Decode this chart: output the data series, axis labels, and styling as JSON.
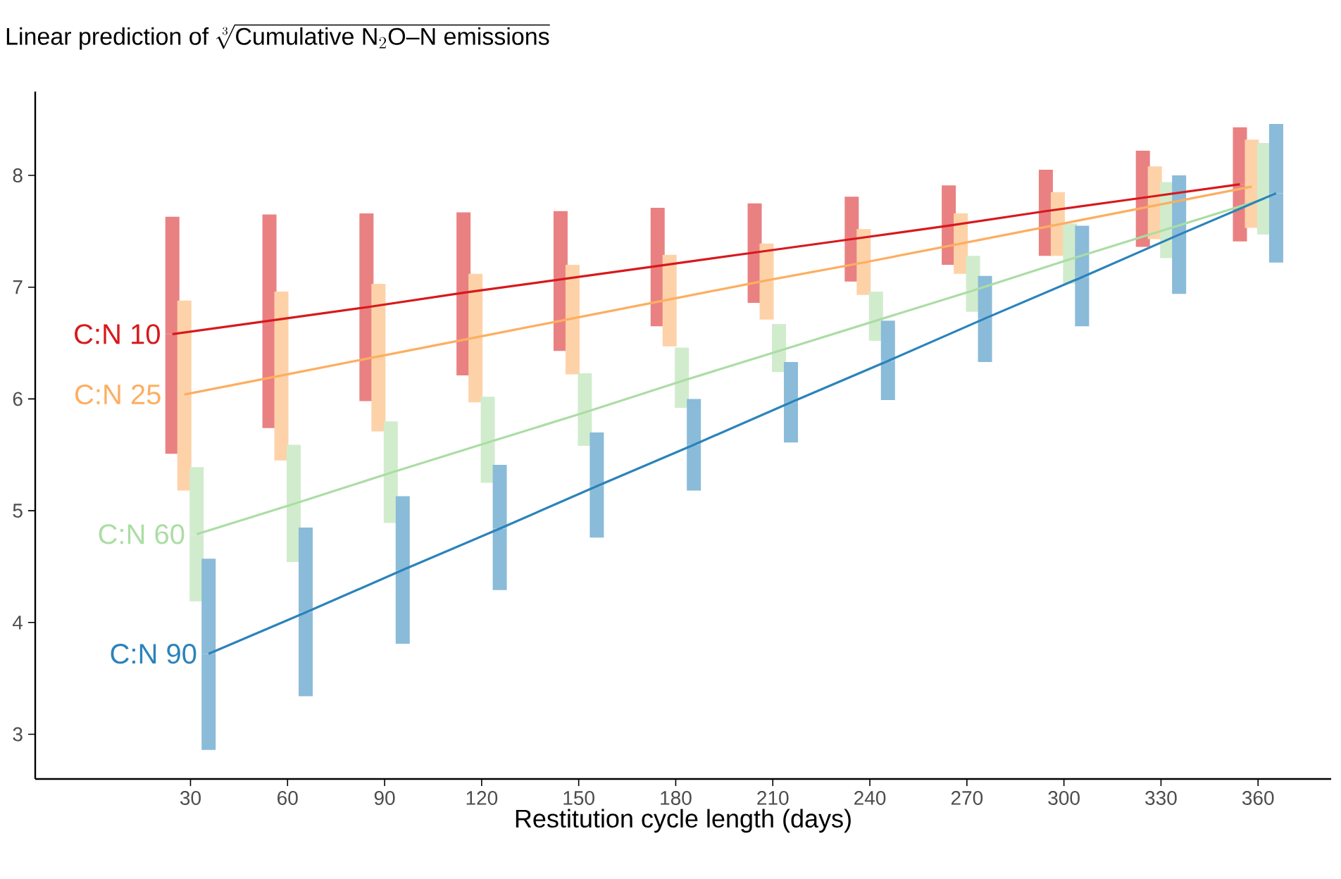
{
  "chart_data": {
    "type": "line",
    "title": "\\text{Linear prediction of }\\sqrt[3]{\\text{Cumulative N}_{2}\\text{O–N emissions}}",
    "xlabel": "Restitution cycle length (days)",
    "xlim": [
      -18,
      382.6
    ],
    "ylim": [
      2.6,
      8.75
    ],
    "xticks": [
      30,
      60,
      90,
      120,
      150,
      180,
      210,
      240,
      270,
      300,
      330,
      360
    ],
    "yticks": [
      3,
      4,
      5,
      6,
      7,
      8
    ],
    "marker": "none",
    "series": [
      {
        "name": "C:N 10",
        "color": "#d7191c",
        "x": [
          24.4,
          54.4,
          84.4,
          114.4,
          144.4,
          174.4,
          204.4,
          234.4,
          264.4,
          294.4,
          324.4,
          354.4
        ],
        "values": [
          6.58,
          6.7,
          6.82,
          6.95,
          7.07,
          7.19,
          7.31,
          7.43,
          7.55,
          7.68,
          7.8,
          7.92
        ],
        "errors": [
          [
            5.51,
            7.63
          ],
          [
            5.74,
            7.65
          ],
          [
            5.98,
            7.66
          ],
          [
            6.21,
            7.67
          ],
          [
            6.43,
            7.68
          ],
          [
            6.65,
            7.71
          ],
          [
            6.86,
            7.75
          ],
          [
            7.05,
            7.81
          ],
          [
            7.2,
            7.91
          ],
          [
            7.28,
            8.05
          ],
          [
            7.36,
            8.22
          ],
          [
            7.41,
            8.43
          ]
        ]
      },
      {
        "name": "C:N 25",
        "color": "#fdae61",
        "x": [
          28.1,
          58.1,
          88.1,
          118.1,
          148.1,
          178.1,
          208.1,
          238.1,
          268.1,
          298.1,
          328.1,
          358.1
        ],
        "values": [
          6.04,
          6.21,
          6.38,
          6.55,
          6.72,
          6.89,
          7.06,
          7.22,
          7.39,
          7.56,
          7.73,
          7.9
        ],
        "errors": [
          [
            5.18,
            6.88
          ],
          [
            5.45,
            6.96
          ],
          [
            5.71,
            7.03
          ],
          [
            5.97,
            7.12
          ],
          [
            6.22,
            7.2
          ],
          [
            6.47,
            7.29
          ],
          [
            6.71,
            7.39
          ],
          [
            6.93,
            7.52
          ],
          [
            7.12,
            7.66
          ],
          [
            7.28,
            7.85
          ],
          [
            7.43,
            8.08
          ],
          [
            7.53,
            8.32
          ]
        ]
      },
      {
        "name": "C:N 60",
        "color": "#abdda4",
        "x": [
          31.9,
          61.9,
          91.9,
          121.9,
          151.9,
          181.9,
          211.9,
          241.9,
          271.9,
          301.9,
          331.9,
          361.9
        ],
        "values": [
          4.79,
          5.06,
          5.34,
          5.61,
          5.88,
          6.16,
          6.43,
          6.7,
          6.97,
          7.25,
          7.52,
          7.79
        ],
        "errors": [
          [
            4.19,
            5.39
          ],
          [
            4.54,
            5.59
          ],
          [
            4.89,
            5.8
          ],
          [
            5.25,
            6.02
          ],
          [
            5.58,
            6.23
          ],
          [
            5.92,
            6.46
          ],
          [
            6.24,
            6.67
          ],
          [
            6.52,
            6.96
          ],
          [
            6.78,
            7.28
          ],
          [
            7.03,
            7.57
          ],
          [
            7.26,
            7.94
          ],
          [
            7.47,
            8.29
          ]
        ]
      },
      {
        "name": "C:N 90",
        "color": "#2b83ba",
        "x": [
          35.6,
          65.6,
          95.6,
          125.6,
          155.6,
          185.6,
          215.6,
          245.6,
          275.6,
          305.6,
          335.6,
          365.6
        ],
        "values": [
          3.72,
          4.09,
          4.47,
          4.84,
          5.22,
          5.59,
          5.97,
          6.34,
          6.72,
          7.09,
          7.47,
          7.84
        ],
        "errors": [
          [
            2.86,
            4.57
          ],
          [
            3.34,
            4.85
          ],
          [
            3.81,
            5.13
          ],
          [
            4.29,
            5.41
          ],
          [
            4.76,
            5.7
          ],
          [
            5.18,
            6.0
          ],
          [
            5.61,
            6.33
          ],
          [
            5.99,
            6.7
          ],
          [
            6.33,
            7.1
          ],
          [
            6.65,
            7.55
          ],
          [
            6.94,
            8.0
          ],
          [
            7.22,
            8.46
          ]
        ]
      }
    ]
  }
}
